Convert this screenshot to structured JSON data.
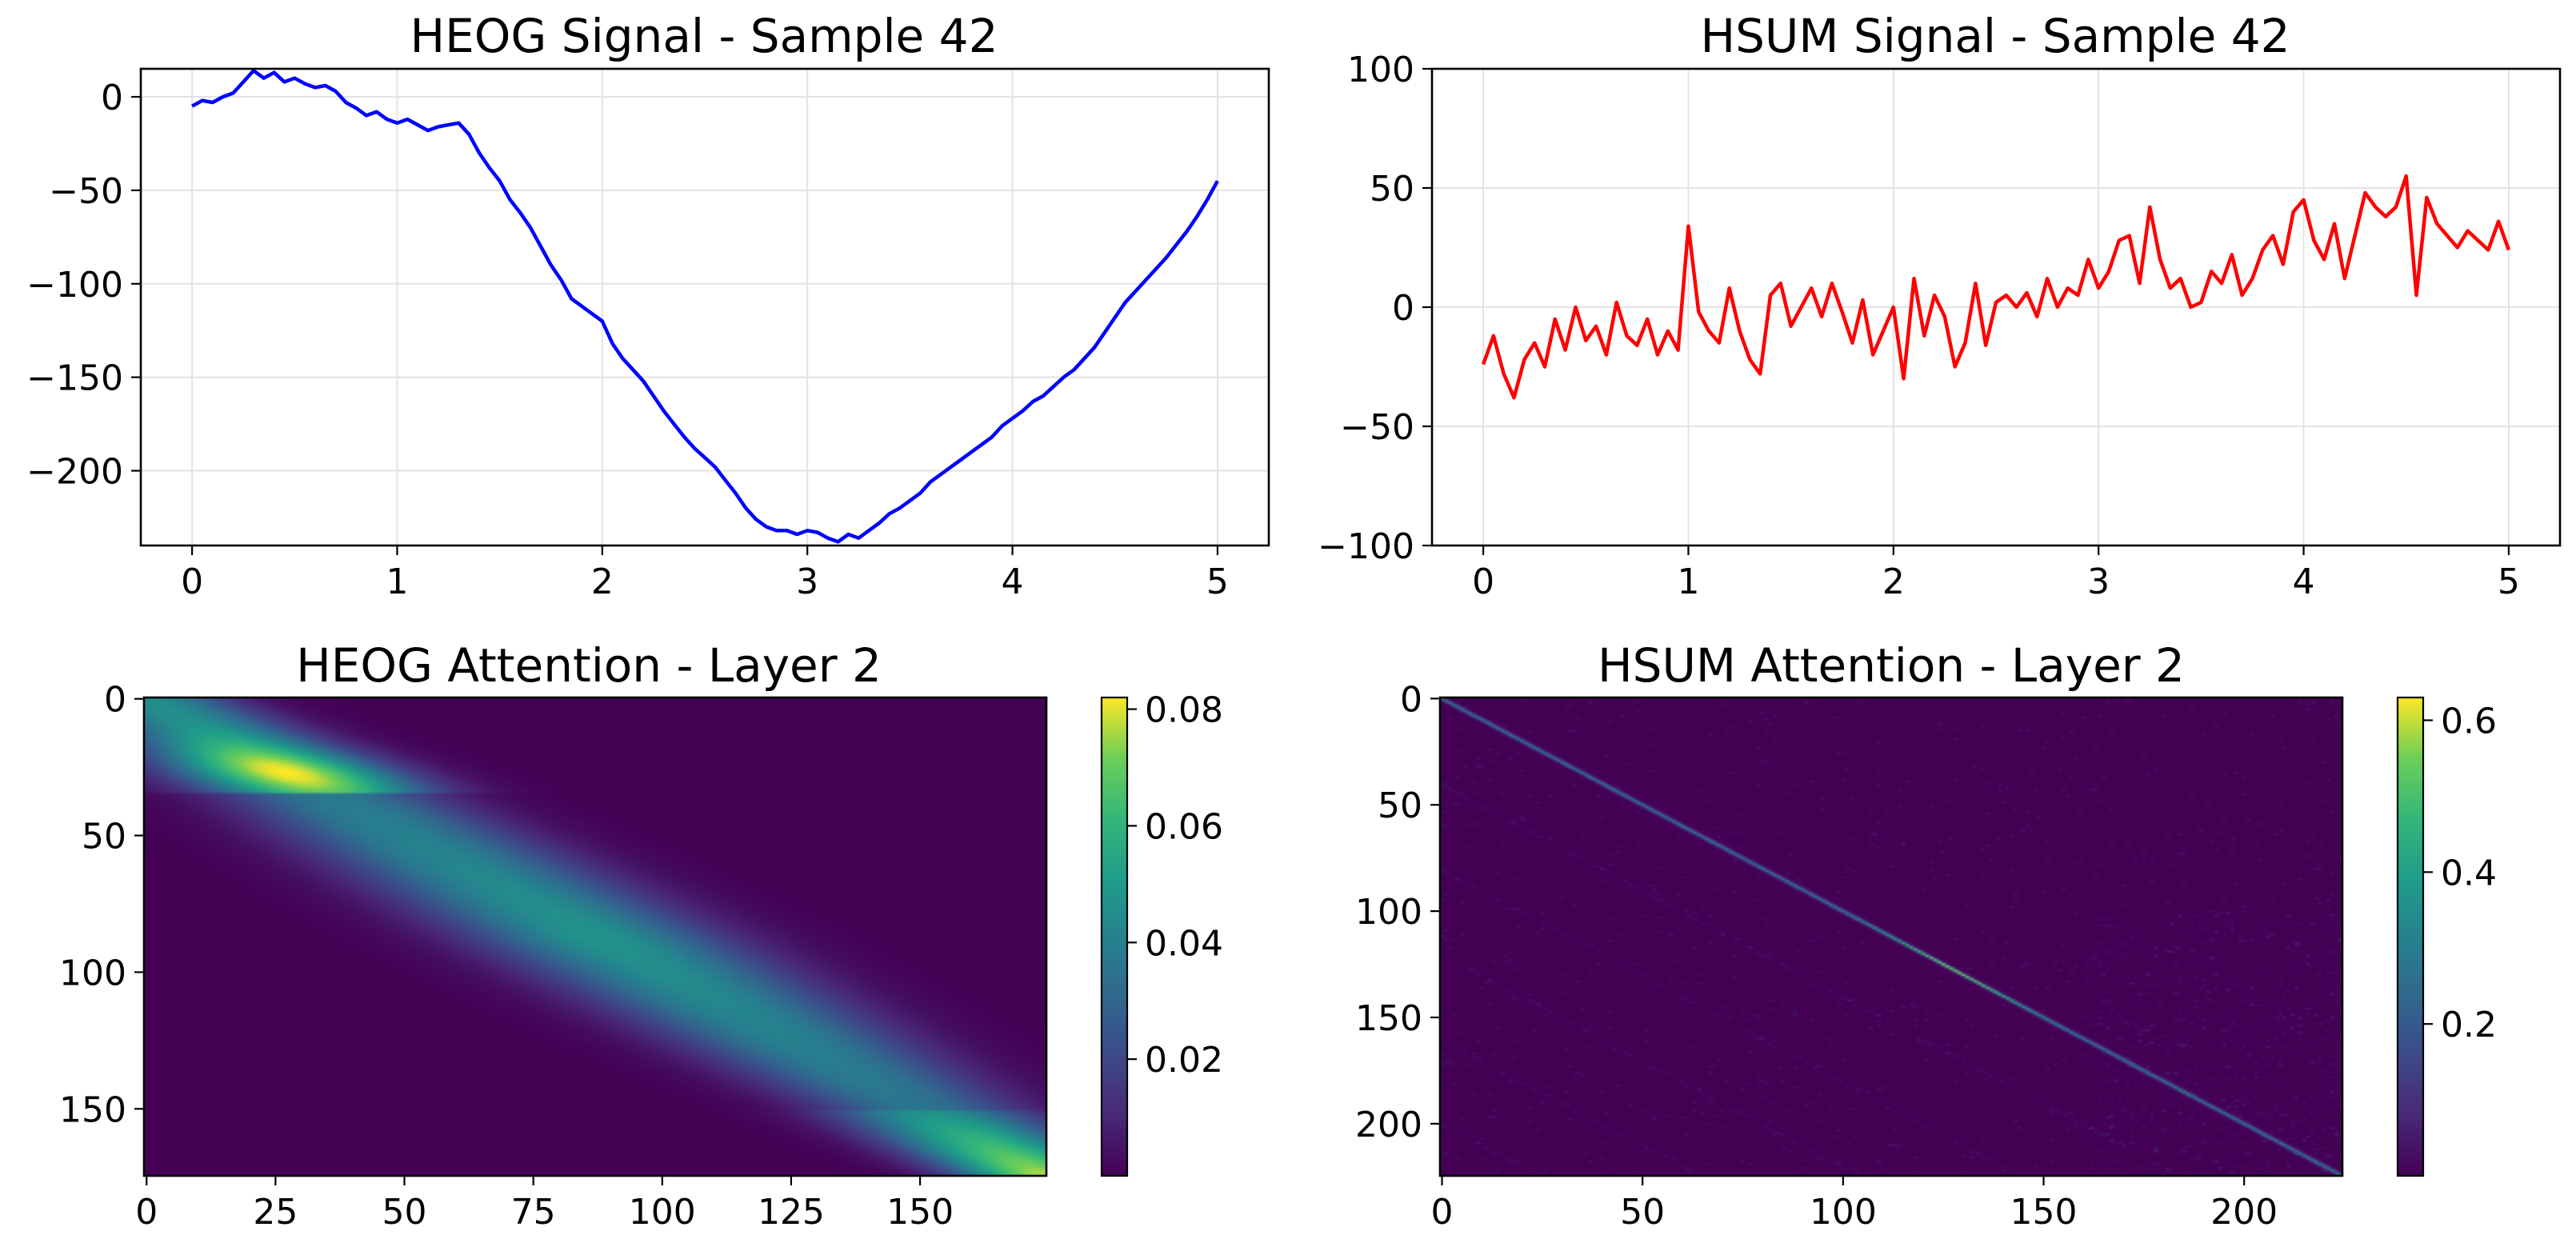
{
  "chart_data": [
    {
      "type": "line",
      "title": "HEOG Signal - Sample 42",
      "xlabel": "",
      "ylabel": "",
      "xlim": [
        -0.25,
        5.25
      ],
      "ylim": [
        -240,
        15
      ],
      "xticks": [
        "0",
        "1",
        "2",
        "3",
        "4",
        "5"
      ],
      "yticks": [
        "0",
        "−50",
        "−100",
        "−150",
        "−200"
      ],
      "grid": true,
      "color": "#0000ff",
      "series": [
        {
          "name": "HEOG",
          "x": [
            0,
            0.05,
            0.1,
            0.15,
            0.2,
            0.25,
            0.3,
            0.35,
            0.4,
            0.45,
            0.5,
            0.55,
            0.6,
            0.65,
            0.7,
            0.75,
            0.8,
            0.85,
            0.9,
            0.95,
            1.0,
            1.05,
            1.1,
            1.15,
            1.2,
            1.25,
            1.3,
            1.35,
            1.4,
            1.45,
            1.5,
            1.55,
            1.6,
            1.65,
            1.7,
            1.75,
            1.8,
            1.85,
            1.9,
            1.95,
            2.0,
            2.05,
            2.1,
            2.15,
            2.2,
            2.25,
            2.3,
            2.35,
            2.4,
            2.45,
            2.5,
            2.55,
            2.6,
            2.65,
            2.7,
            2.75,
            2.8,
            2.85,
            2.9,
            2.95,
            3.0,
            3.05,
            3.1,
            3.15,
            3.2,
            3.25,
            3.3,
            3.35,
            3.4,
            3.45,
            3.5,
            3.55,
            3.6,
            3.65,
            3.7,
            3.75,
            3.8,
            3.85,
            3.9,
            3.95,
            4.0,
            4.05,
            4.1,
            4.15,
            4.2,
            4.25,
            4.3,
            4.35,
            4.4,
            4.45,
            4.5,
            4.55,
            4.6,
            4.65,
            4.7,
            4.75,
            4.8,
            4.85,
            4.9,
            4.95,
            5.0
          ],
          "y": [
            -5,
            -2,
            -3,
            0,
            2,
            8,
            14,
            10,
            13,
            8,
            10,
            7,
            5,
            6,
            3,
            -3,
            -6,
            -10,
            -8,
            -12,
            -14,
            -12,
            -15,
            -18,
            -16,
            -15,
            -14,
            -20,
            -30,
            -38,
            -45,
            -55,
            -62,
            -70,
            -80,
            -90,
            -98,
            -108,
            -112,
            -116,
            -120,
            -132,
            -140,
            -146,
            -152,
            -160,
            -168,
            -175,
            -182,
            -188,
            -193,
            -198,
            -205,
            -212,
            -220,
            -226,
            -230,
            -232,
            -232,
            -234,
            -232,
            -233,
            -236,
            -238,
            -234,
            -236,
            -232,
            -228,
            -223,
            -220,
            -216,
            -212,
            -206,
            -202,
            -198,
            -194,
            -190,
            -186,
            -182,
            -176,
            -172,
            -168,
            -163,
            -160,
            -155,
            -150,
            -146,
            -140,
            -134,
            -126,
            -118,
            -110,
            -104,
            -98,
            -92,
            -86,
            -79,
            -72,
            -64,
            -55,
            -45
          ]
        }
      ]
    },
    {
      "type": "line",
      "title": "HSUM Signal - Sample 42",
      "xlabel": "",
      "ylabel": "",
      "xlim": [
        -0.25,
        5.25
      ],
      "ylim": [
        -100,
        100
      ],
      "xticks": [
        "0",
        "1",
        "2",
        "3",
        "4",
        "5"
      ],
      "yticks": [
        "100",
        "50",
        "0",
        "−50",
        "−100"
      ],
      "grid": true,
      "color": "#ff0000",
      "series": [
        {
          "name": "HSUM",
          "x": [
            0,
            0.05,
            0.1,
            0.15,
            0.2,
            0.25,
            0.3,
            0.35,
            0.4,
            0.45,
            0.5,
            0.55,
            0.6,
            0.65,
            0.7,
            0.75,
            0.8,
            0.85,
            0.9,
            0.95,
            1.0,
            1.05,
            1.1,
            1.15,
            1.2,
            1.25,
            1.3,
            1.35,
            1.4,
            1.45,
            1.5,
            1.55,
            1.6,
            1.65,
            1.7,
            1.75,
            1.8,
            1.85,
            1.9,
            1.95,
            2.0,
            2.05,
            2.1,
            2.15,
            2.2,
            2.25,
            2.3,
            2.35,
            2.4,
            2.45,
            2.5,
            2.55,
            2.6,
            2.65,
            2.7,
            2.75,
            2.8,
            2.85,
            2.9,
            2.95,
            3.0,
            3.05,
            3.1,
            3.15,
            3.2,
            3.25,
            3.3,
            3.35,
            3.4,
            3.45,
            3.5,
            3.55,
            3.6,
            3.65,
            3.7,
            3.75,
            3.8,
            3.85,
            3.9,
            3.95,
            4.0,
            4.05,
            4.1,
            4.15,
            4.2,
            4.25,
            4.3,
            4.35,
            4.4,
            4.45,
            4.5,
            4.55,
            4.6,
            4.65,
            4.7,
            4.75,
            4.8,
            4.85,
            4.9,
            4.95,
            5.0
          ],
          "y": [
            -24,
            -12,
            -28,
            -38,
            -22,
            -15,
            -25,
            -5,
            -18,
            0,
            -14,
            -8,
            -20,
            2,
            -12,
            -16,
            -5,
            -20,
            -10,
            -18,
            34,
            -2,
            -10,
            -15,
            8,
            -10,
            -22,
            -28,
            5,
            10,
            -8,
            0,
            8,
            -4,
            10,
            -2,
            -15,
            3,
            -20,
            -10,
            0,
            -30,
            12,
            -12,
            5,
            -4,
            -25,
            -15,
            10,
            -16,
            2,
            5,
            0,
            6,
            -4,
            12,
            0,
            8,
            5,
            20,
            8,
            15,
            28,
            30,
            10,
            42,
            20,
            8,
            12,
            0,
            2,
            15,
            10,
            22,
            5,
            12,
            24,
            30,
            18,
            40,
            45,
            28,
            20,
            35,
            12,
            30,
            48,
            42,
            38,
            42,
            55,
            5,
            46,
            35,
            30,
            25,
            32,
            28,
            24,
            36,
            24
          ]
        }
      ]
    },
    {
      "type": "heatmap",
      "title": "HEOG Attention - Layer 2",
      "size": 175,
      "xticks": [
        "0",
        "25",
        "50",
        "75",
        "100",
        "125",
        "150"
      ],
      "yticks": [
        "0",
        "50",
        "100",
        "150"
      ],
      "colorbar_ticks": [
        "0.02",
        "0.04",
        "0.06",
        "0.08"
      ],
      "value_range": [
        0.0,
        0.082
      ],
      "colormap": "viridis"
    },
    {
      "type": "heatmap",
      "title": "HSUM Attention - Layer 2",
      "size": 225,
      "xticks": [
        "0",
        "50",
        "100",
        "150",
        "200"
      ],
      "yticks": [
        "0",
        "50",
        "100",
        "150",
        "200"
      ],
      "colorbar_ticks": [
        "0.2",
        "0.4",
        "0.6"
      ],
      "value_range": [
        0.0,
        0.63
      ],
      "colormap": "viridis"
    }
  ]
}
